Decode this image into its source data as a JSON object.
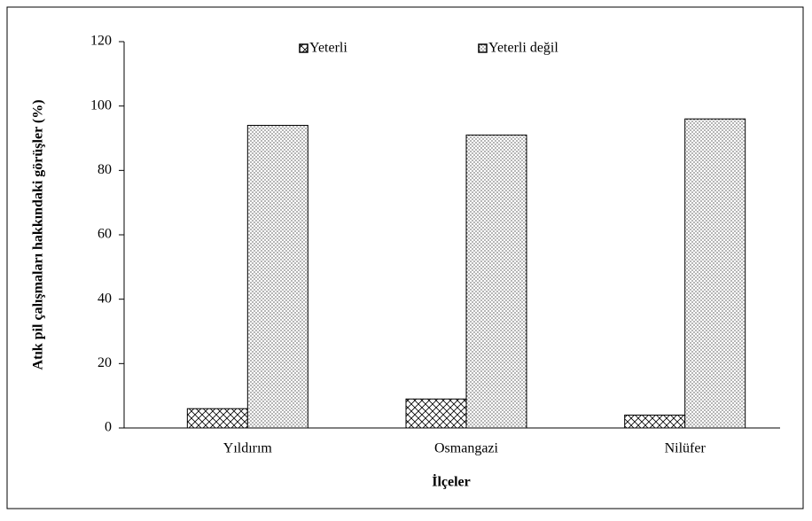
{
  "chart_data": {
    "type": "bar",
    "y_label": "Atık pil çalışmaları hakkındaki görüşler  (%)",
    "x_label": "İlçeler",
    "categories": [
      "Yıldırım",
      "Osmangazi",
      "Nilüfer"
    ],
    "series": [
      {
        "name": "Yeterli",
        "color": "#000000",
        "pattern": "crosshatch",
        "values": [
          6,
          9,
          4
        ]
      },
      {
        "name": "Yeterli değil",
        "color": "#000000",
        "pattern": "dots",
        "values": [
          94,
          91,
          96
        ]
      }
    ],
    "ylim": [
      0,
      120
    ],
    "yticks": [
      0,
      20,
      40,
      60,
      80,
      100,
      120
    ],
    "grid": false,
    "legend": "top"
  }
}
